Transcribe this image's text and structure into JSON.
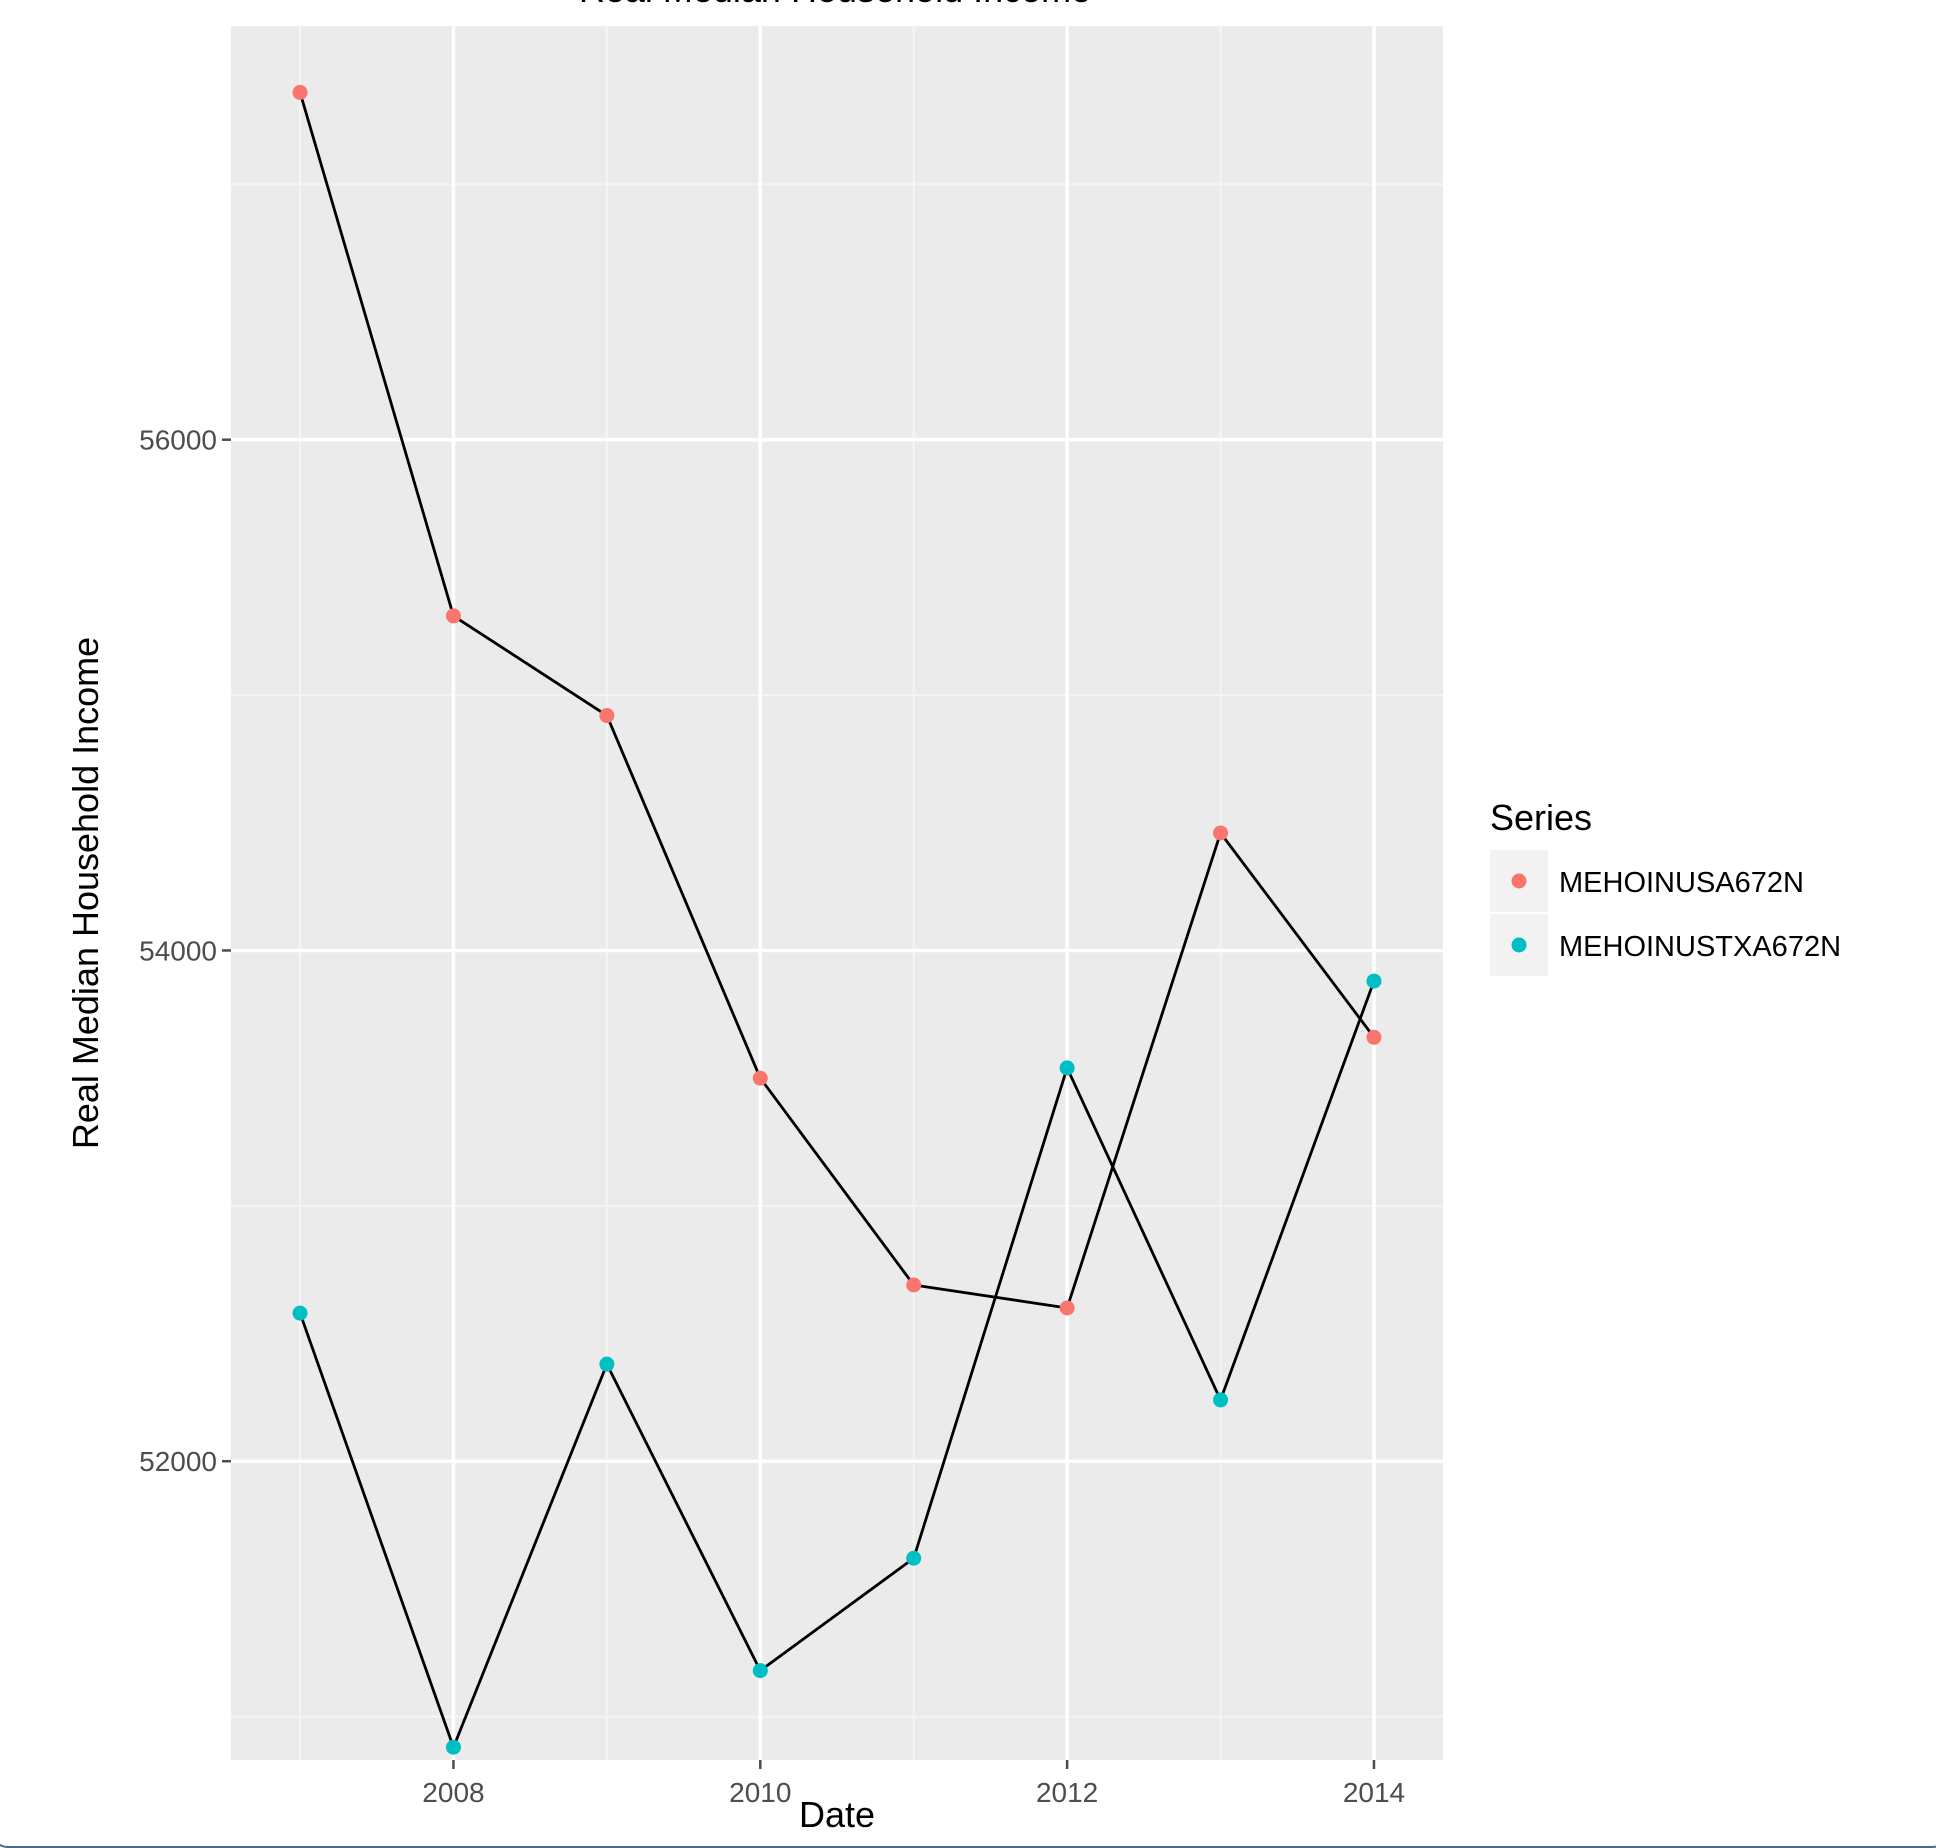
{
  "chart_data": {
    "type": "line",
    "title": "Real Median Household Income",
    "xlabel": "Date",
    "ylabel": "Real Median Household Income",
    "x": [
      2007,
      2008,
      2009,
      2010,
      2011,
      2012,
      2013,
      2014
    ],
    "x_ticks": [
      2008,
      2010,
      2012,
      2014
    ],
    "y_ticks": [
      52000,
      54000,
      56000
    ],
    "xlim": [
      2006.55,
      2014.45
    ],
    "ylim": [
      50830,
      57620
    ],
    "series": [
      {
        "name": "MEHOINUSA672N",
        "color": "#f8766d",
        "values": [
          57360,
          55310,
          54920,
          53500,
          52690,
          52600,
          54460,
          53660
        ]
      },
      {
        "name": "MEHOINUSTXA672N",
        "color": "#00bfc4",
        "values": [
          52580,
          50880,
          52380,
          51180,
          51620,
          53540,
          52240,
          53880
        ]
      }
    ],
    "line_color": "#000000",
    "panel_background": "#ebebeb",
    "grid": true,
    "legend": {
      "title": "Series",
      "position": "right"
    }
  }
}
